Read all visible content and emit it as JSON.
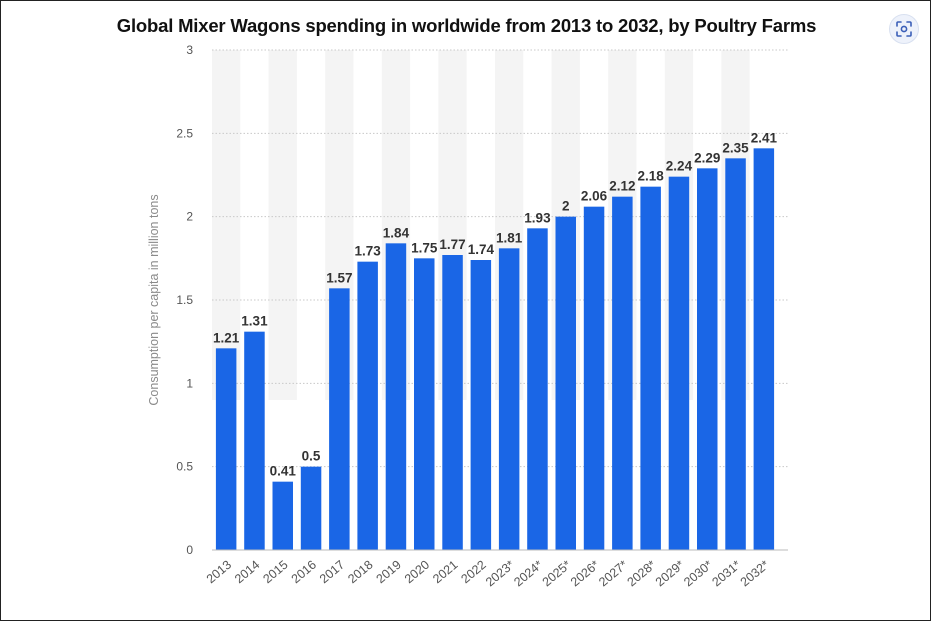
{
  "chart_data": {
    "type": "bar",
    "title": "Global Mixer Wagons spending in worldwide from 2013 to 2032, by Poultry Farms",
    "ylabel": "Consumption per capita in million tons",
    "xlabel": "",
    "ylim": [
      0,
      3
    ],
    "yticks": [
      "0",
      "0.5",
      "1",
      "1.5",
      "2",
      "2.5",
      "3"
    ],
    "categories": [
      "2013",
      "2014",
      "2015",
      "2016",
      "2017",
      "2018",
      "2019",
      "2020",
      "2021",
      "2022",
      "2023*",
      "2024*",
      "2025*",
      "2026*",
      "2027*",
      "2028*",
      "2029*",
      "2030*",
      "2031*",
      "2032*"
    ],
    "values": [
      1.21,
      1.31,
      0.41,
      0.5,
      1.57,
      1.73,
      1.84,
      1.75,
      1.77,
      1.74,
      1.81,
      1.93,
      2,
      2.06,
      2.12,
      2.18,
      2.24,
      2.29,
      2.35,
      2.41
    ],
    "value_labels": [
      "1.21",
      "1.31",
      "0.41",
      "0.5",
      "1.57",
      "1.73",
      "1.84",
      "1.75",
      "1.77",
      "1.74",
      "1.81",
      "1.93",
      "2",
      "2.06",
      "2.12",
      "2.18",
      "2.24",
      "2.29",
      "2.35",
      "2.41"
    ],
    "grid": true,
    "bar_color": "#1a66e6"
  },
  "toolbar": {
    "scan_icon": "scan-focus-icon"
  }
}
